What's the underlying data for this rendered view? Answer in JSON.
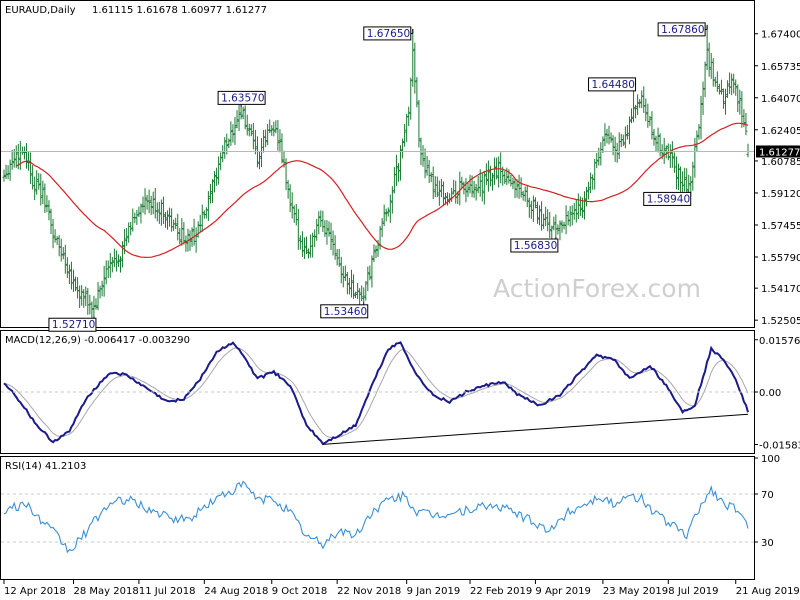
{
  "chart_data": [
    {
      "type": "ohlc",
      "header": {
        "symbol": "EURAUD,Daily",
        "values": "1.61115 1.61678 1.60977 1.61277"
      },
      "y_ticks": [
        "1.67400",
        "1.65735",
        "1.64070",
        "1.62405",
        "1.60785",
        "1.59120",
        "1.57455",
        "1.55790",
        "1.54170",
        "1.52505"
      ],
      "y_tick_values": [
        1.674,
        1.65735,
        1.6407,
        1.62405,
        1.60785,
        1.5912,
        1.57455,
        1.5579,
        1.5417,
        1.52505
      ],
      "ylim": [
        1.5215,
        1.6905
      ],
      "current_price_label": "1.61277",
      "current_price": 1.61277,
      "x_ticks": [
        "12 Apr 2018",
        "28 May 2018",
        "11 Jul 2018",
        "24 Aug 2018",
        "9 Oct 2018",
        "22 Nov 2018",
        "9 Jan 2019",
        "22 Feb 2019",
        "9 Apr 2019",
        "23 May 2019",
        "8 Jul 2019",
        "21 Aug 2019"
      ],
      "x_tick_pos": [
        0,
        34,
        66,
        98,
        131,
        163,
        197,
        228,
        260,
        293,
        325,
        358
      ],
      "n_bars": 365,
      "annotations": [
        {
          "text": "1.52710",
          "bar": 44,
          "value": 1.5271
        },
        {
          "text": "1.63570",
          "bar": 116,
          "value": 1.6357
        },
        {
          "text": "1.53460",
          "bar": 176,
          "value": 1.5346
        },
        {
          "text": "1.67650",
          "bar": 200,
          "value": 1.6765
        },
        {
          "text": "1.56830",
          "bar": 270,
          "value": 1.5683
        },
        {
          "text": "1.64480",
          "bar": 308,
          "value": 1.6448
        },
        {
          "text": "1.58940",
          "bar": 335,
          "value": 1.5894
        },
        {
          "text": "1.67860",
          "bar": 344,
          "value": 1.6786
        }
      ],
      "watermark": "ActionForex.com",
      "series_colors": {
        "bars": "#1a7a33",
        "ma": "#d42020"
      }
    },
    {
      "type": "line",
      "label": "MACD(12,26,9) -0.006417 -0.003290",
      "y_ticks": [
        "0.015762",
        "0.00",
        "-0.015834"
      ],
      "y_tick_values": [
        0.015762,
        0,
        -0.015834
      ],
      "ylim": [
        -0.0181,
        0.0181
      ],
      "colors": {
        "macd": "#1a1a8c",
        "signal": "#a0a0a0",
        "trendline": "#000000"
      }
    },
    {
      "type": "line",
      "label": "RSI(14) 41.2103",
      "y_ticks": [
        "100",
        "70",
        "30"
      ],
      "y_tick_values": [
        100,
        70,
        30
      ],
      "levels": [
        70,
        30
      ],
      "ylim": [
        0,
        100
      ],
      "color": "#3a8fd6"
    }
  ]
}
